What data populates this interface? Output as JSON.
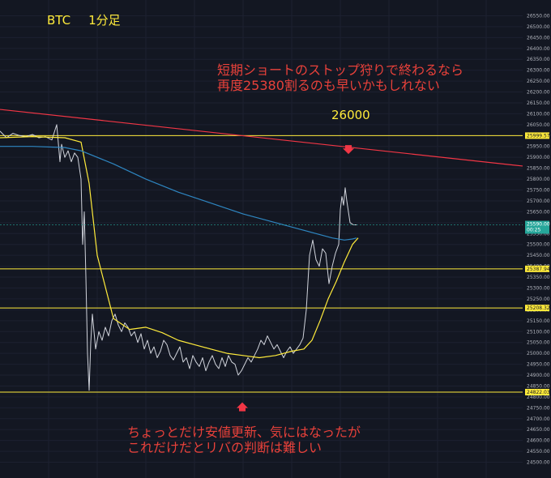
{
  "chart_data": {
    "type": "line",
    "symbol": "BTC",
    "timeframe": "1分足",
    "ylim": [
      24450,
      26600
    ],
    "y_ticks": [
      24500,
      24550,
      24600,
      24650,
      24700,
      24750,
      24800,
      24850,
      24900,
      24950,
      25000,
      25050,
      25100,
      25150,
      25200,
      25250,
      25300,
      25350,
      25400,
      25450,
      25500,
      25550,
      25600,
      25650,
      25700,
      25750,
      25800,
      25850,
      25900,
      25950,
      26000,
      26050,
      26100,
      26150,
      26200,
      26250,
      26300,
      26350,
      26400,
      26450,
      26500,
      26550
    ],
    "horizontal_levels": [
      {
        "value": 25999.57,
        "label": "25999.57",
        "color": "#ffeb3b"
      },
      {
        "value": 25387.94,
        "label": "25387.94",
        "color": "#ffeb3b"
      },
      {
        "value": 25208.32,
        "label": "25208.32",
        "color": "#ffeb3b"
      },
      {
        "value": 24822.03,
        "label": "24822.03",
        "color": "#ffeb3b"
      }
    ],
    "current_price": {
      "value": 25590.0,
      "label": "25590.00",
      "countdown": "00:25"
    },
    "trendline": {
      "color": "#f23645",
      "x": [
        0,
        645
      ],
      "y": [
        26120,
        25860
      ]
    },
    "series": [
      {
        "kind": "price",
        "color": "#d1d4dc",
        "x": [
          0,
          8,
          16,
          24,
          32,
          40,
          48,
          56,
          64,
          70,
          74,
          76,
          80,
          84,
          88,
          92,
          96,
          100,
          102,
          104,
          106,
          108,
          110,
          112,
          114,
          118,
          122,
          126,
          130,
          134,
          138,
          142,
          146,
          150,
          154,
          158,
          162,
          166,
          170,
          174,
          178,
          182,
          186,
          190,
          194,
          198,
          202,
          206,
          210,
          214,
          218,
          222,
          226,
          230,
          234,
          238,
          242,
          246,
          250,
          254,
          258,
          262,
          266,
          270,
          274,
          278,
          282,
          286,
          290,
          294,
          298,
          302,
          306,
          310,
          314,
          318,
          322,
          326,
          330,
          334,
          338,
          342,
          346,
          350,
          354,
          358,
          362,
          366,
          370,
          374,
          378,
          382,
          386,
          390,
          394,
          398,
          402,
          406,
          410,
          414,
          418,
          420,
          422,
          424,
          426,
          428,
          430,
          432,
          436,
          440
        ],
        "y": [
          26020,
          25990,
          26010,
          26000,
          25995,
          26005,
          25990,
          25995,
          25980,
          26050,
          25880,
          25960,
          25900,
          25930,
          25880,
          25920,
          25900,
          25800,
          25500,
          25650,
          25350,
          25000,
          24830,
          25050,
          25180,
          25020,
          25100,
          25060,
          25120,
          25080,
          25150,
          25180,
          25130,
          25100,
          25140,
          25120,
          25080,
          25100,
          25050,
          25090,
          25020,
          25060,
          25000,
          25030,
          24980,
          25010,
          25060,
          25040,
          24990,
          24970,
          25000,
          25030,
          24960,
          24980,
          24930,
          24990,
          24960,
          24940,
          24980,
          24920,
          24960,
          24990,
          24950,
          24930,
          24980,
          24940,
          24990,
          24960,
          24950,
          24900,
          24920,
          24950,
          24980,
          24960,
          24990,
          25020,
          25060,
          25040,
          25080,
          25050,
          25020,
          25040,
          25010,
          24980,
          25010,
          25030,
          25000,
          25020,
          25040,
          25070,
          25200,
          25450,
          25520,
          25430,
          25400,
          25480,
          25460,
          25320,
          25400,
          25460,
          25500,
          25660,
          25720,
          25680,
          25760,
          25700,
          25650,
          25600,
          25590,
          25590
        ]
      },
      {
        "kind": "ma-fast",
        "color": "#ffeb3b",
        "x": [
          0,
          40,
          80,
          100,
          110,
          120,
          140,
          160,
          180,
          200,
          220,
          240,
          260,
          280,
          300,
          320,
          340,
          360,
          375,
          385,
          395,
          405,
          415,
          425,
          435,
          442
        ],
        "y": [
          25990,
          25995,
          25990,
          25970,
          25780,
          25450,
          25160,
          25110,
          25120,
          25095,
          25060,
          25040,
          25020,
          25000,
          24990,
          24980,
          24990,
          25010,
          25020,
          25060,
          25150,
          25250,
          25330,
          25420,
          25500,
          25530
        ]
      },
      {
        "kind": "ma-slow",
        "color": "#2e86c1",
        "x": [
          0,
          40,
          80,
          100,
          140,
          180,
          220,
          260,
          300,
          340,
          370,
          390,
          410,
          425,
          435,
          440
        ],
        "y": [
          25950,
          25950,
          25945,
          25930,
          25870,
          25800,
          25740,
          25690,
          25640,
          25600,
          25570,
          25550,
          25530,
          25520,
          25525,
          25530
        ]
      }
    ],
    "annotations": [
      {
        "text_lines": [
          "短期ショートのストップ狩りで終わるなら",
          "再度25380割るのも早いかもしれない"
        ],
        "color": "#e8413a"
      },
      {
        "text_lines": [
          "26000"
        ],
        "color": "#ffeb3b"
      },
      {
        "text_lines": [
          "ちょっとだけ安値更新、気にはなったが",
          "これだけだとリバの判断は難しい"
        ],
        "color": "#e8413a"
      }
    ],
    "arrows": [
      {
        "direction": "down",
        "x": 430,
        "y": 25930,
        "color": "#f23645"
      },
      {
        "direction": "up",
        "x": 299,
        "y": 24760,
        "color": "#f23645"
      }
    ],
    "grid": true
  }
}
